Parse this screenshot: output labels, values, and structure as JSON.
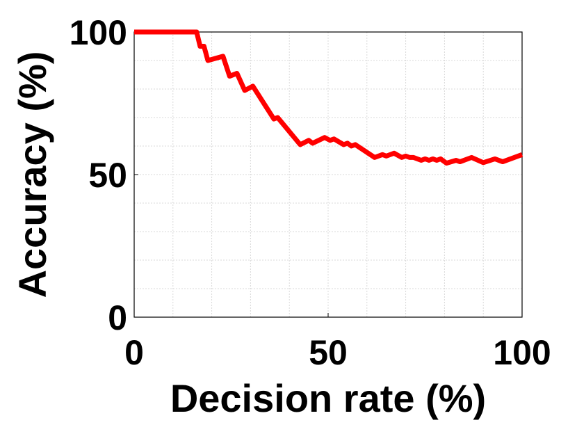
{
  "chart_data": {
    "type": "line",
    "xlabel": "Decision rate (%)",
    "ylabel": "Accuracy (%)",
    "x": [
      0,
      16.1,
      17,
      18,
      19,
      22.9,
      24.6,
      26.5,
      28.5,
      30.6,
      36,
      37,
      42.8,
      45,
      46,
      49.1,
      50.5,
      51.5,
      54,
      55,
      56,
      57,
      62,
      64,
      65,
      67,
      69,
      70,
      71,
      72,
      74,
      75,
      76,
      77,
      78,
      79,
      80.5,
      83,
      84,
      87,
      90,
      93,
      95,
      100
    ],
    "series": [
      {
        "name": "Accuracy",
        "color": "#ff0000",
        "values": [
          100,
          100,
          95,
          95,
          90,
          91.5,
          84.5,
          85.5,
          79.5,
          81,
          69.5,
          70,
          60.5,
          62,
          61,
          63,
          62,
          62.5,
          60.5,
          61,
          60,
          60.5,
          56,
          57,
          56.5,
          57.5,
          56,
          56.5,
          56,
          56,
          55,
          55.5,
          55,
          55.5,
          55,
          55.5,
          54,
          55,
          54.5,
          56,
          54.2,
          55.5,
          54.5,
          57
        ]
      }
    ],
    "xlim": [
      0,
      100
    ],
    "ylim": [
      0,
      100
    ],
    "xticks": [
      0,
      50,
      100
    ],
    "yticks": [
      0,
      50,
      100
    ],
    "xgrid": [
      10,
      20,
      30,
      40,
      50,
      60,
      70,
      80,
      90
    ],
    "ygrid": [
      10,
      20,
      30,
      40,
      50,
      60,
      70,
      80,
      90
    ],
    "grid": true
  }
}
